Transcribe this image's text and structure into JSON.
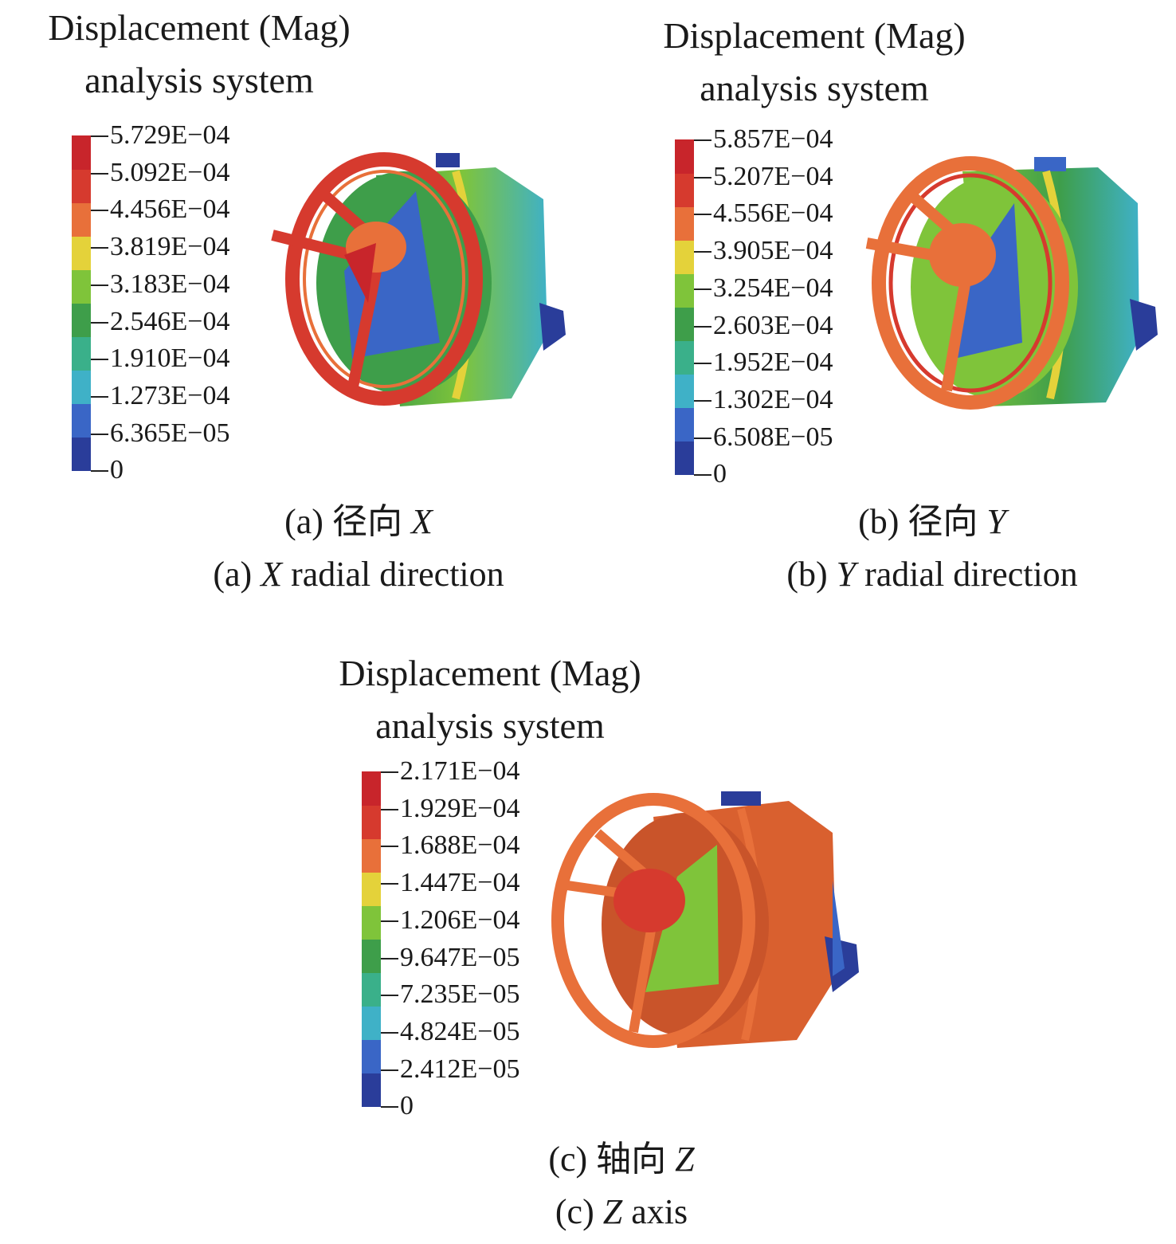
{
  "legend_colors": [
    "#2a3d9a",
    "#3a66c6",
    "#3fb1c7",
    "#3ab08a",
    "#3e9e4a",
    "#7fc43a",
    "#e4d23a",
    "#e8703a",
    "#d63a2e",
    "#c8252b"
  ],
  "panels": [
    {
      "id": "a",
      "title_line1": "Displacement (Mag)",
      "title_line2": "analysis system",
      "legend_labels": [
        "5.729E−04",
        "5.092E−04",
        "4.456E−04",
        "3.819E−04",
        "3.183E−04",
        "2.546E−04",
        "1.910E−04",
        "1.273E−04",
        "6.365E−05",
        "0"
      ],
      "caption_cn_prefix": "(a) 径向 ",
      "caption_cn_axis": "X",
      "caption_en_prefix": "(a) ",
      "caption_en_axis": "X",
      "caption_en_suffix": " radial direction"
    },
    {
      "id": "b",
      "title_line1": "Displacement (Mag)",
      "title_line2": "analysis system",
      "legend_labels": [
        "5.857E−04",
        "5.207E−04",
        "4.556E−04",
        "3.905E−04",
        "3.254E−04",
        "2.603E−04",
        "1.952E−04",
        "1.302E−04",
        "6.508E−05",
        "0"
      ],
      "caption_cn_prefix": "(b) 径向 ",
      "caption_cn_axis": "Y",
      "caption_en_prefix": "(b) ",
      "caption_en_axis": "Y",
      "caption_en_suffix": " radial direction"
    },
    {
      "id": "c",
      "title_line1": "Displacement (Mag)",
      "title_line2": "analysis system",
      "legend_labels": [
        "2.171E−04",
        "1.929E−04",
        "1.688E−04",
        "1.447E−04",
        "1.206E−04",
        "9.647E−05",
        "7.235E−05",
        "4.824E−05",
        "2.412E−05",
        "0"
      ],
      "caption_cn_prefix": "(c) 轴向 ",
      "caption_cn_axis": "Z",
      "caption_en_prefix": "(c) ",
      "caption_en_axis": "Z",
      "caption_en_suffix": " axis"
    }
  ]
}
